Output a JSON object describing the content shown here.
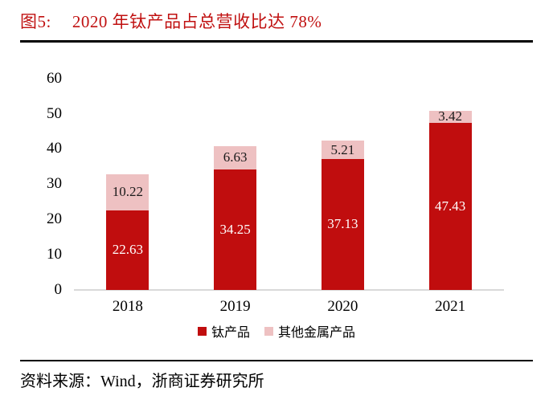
{
  "header": {
    "figure_label": "图5:",
    "title": "2020 年钛产品占总营收比达 78%",
    "accent_color": "#c01010"
  },
  "chart_data": {
    "type": "bar",
    "stacked": true,
    "title": "2020 年钛产品占总营收比达 78%",
    "categories": [
      "2018",
      "2019",
      "2020",
      "2021"
    ],
    "series": [
      {
        "name": "钛产品",
        "color": "#c00d0e",
        "label_color": "#ffffff",
        "values": [
          22.63,
          34.25,
          37.13,
          47.43
        ]
      },
      {
        "name": "其他金属产品",
        "color": "#eec1c2",
        "label_color": "#1a1a1a",
        "values": [
          10.22,
          6.63,
          5.21,
          3.42
        ]
      }
    ],
    "xlabel": "",
    "ylabel": "",
    "ylim": [
      0,
      60
    ],
    "yticks": [
      0,
      10,
      20,
      30,
      40,
      50,
      60
    ],
    "grid": false,
    "legend_position": "bottom",
    "baseline_color": "#d9d9d9"
  },
  "footer": {
    "source": "资料来源：Wind，浙商证券研究所"
  }
}
